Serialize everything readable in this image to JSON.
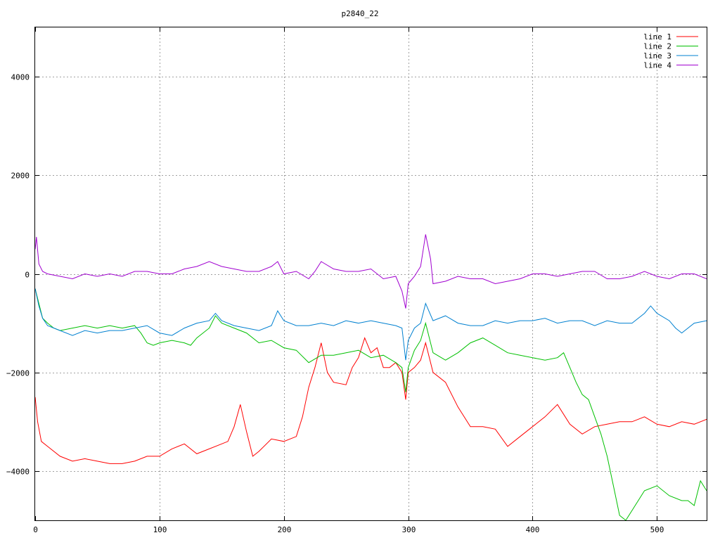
{
  "chart_data": {
    "type": "line",
    "title": "p2840_22",
    "xlabel": "",
    "ylabel": "",
    "xlim": [
      0,
      540
    ],
    "ylim": [
      -5000,
      5000
    ],
    "x_ticks": [
      0,
      100,
      200,
      300,
      400,
      500
    ],
    "y_ticks": [
      -4000,
      -2000,
      0,
      2000,
      4000
    ],
    "grid": true,
    "legend_position": "top-right",
    "series": [
      {
        "name": "line 1",
        "color": "#ff0000",
        "x": [
          0,
          2,
          5,
          10,
          20,
          30,
          40,
          50,
          60,
          70,
          80,
          90,
          100,
          110,
          120,
          130,
          140,
          150,
          155,
          160,
          165,
          170,
          175,
          180,
          190,
          200,
          210,
          215,
          220,
          225,
          230,
          235,
          240,
          250,
          255,
          260,
          265,
          270,
          275,
          280,
          285,
          290,
          295,
          298,
          300,
          305,
          310,
          314,
          320,
          330,
          340,
          350,
          360,
          370,
          380,
          390,
          400,
          410,
          420,
          430,
          440,
          450,
          460,
          470,
          480,
          490,
          500,
          510,
          520,
          530,
          540
        ],
        "y": [
          -2500,
          -3000,
          -3400,
          -3500,
          -3700,
          -3800,
          -3750,
          -3800,
          -3850,
          -3850,
          -3800,
          -3700,
          -3700,
          -3550,
          -3450,
          -3650,
          -3550,
          -3450,
          -3400,
          -3100,
          -2650,
          -3200,
          -3700,
          -3600,
          -3350,
          -3400,
          -3300,
          -2900,
          -2300,
          -1900,
          -1400,
          -2000,
          -2200,
          -2250,
          -1900,
          -1700,
          -1300,
          -1600,
          -1500,
          -1900,
          -1900,
          -1800,
          -2000,
          -2550,
          -2000,
          -1900,
          -1750,
          -1400,
          -2000,
          -2200,
          -2700,
          -3100,
          -3100,
          -3150,
          -3500,
          -3300,
          -3100,
          -2900,
          -2650,
          -3050,
          -3250,
          -3100,
          -3050,
          -3000,
          -3000,
          -2900,
          -3050,
          -3100,
          -3000,
          -3050,
          -2950
        ]
      },
      {
        "name": "line 2",
        "color": "#00c000",
        "x": [
          0,
          3,
          6,
          10,
          15,
          20,
          30,
          40,
          50,
          60,
          70,
          80,
          85,
          90,
          95,
          100,
          110,
          120,
          125,
          130,
          140,
          145,
          150,
          160,
          170,
          180,
          190,
          200,
          210,
          220,
          230,
          240,
          250,
          260,
          270,
          280,
          290,
          295,
          298,
          300,
          305,
          310,
          314,
          320,
          330,
          340,
          350,
          360,
          370,
          380,
          390,
          400,
          410,
          420,
          425,
          430,
          435,
          440,
          445,
          450,
          455,
          460,
          465,
          470,
          475,
          480,
          490,
          500,
          510,
          520,
          525,
          530,
          535,
          540
        ],
        "y": [
          -300,
          -600,
          -900,
          -1000,
          -1100,
          -1150,
          -1100,
          -1050,
          -1100,
          -1050,
          -1100,
          -1050,
          -1200,
          -1400,
          -1450,
          -1400,
          -1350,
          -1400,
          -1450,
          -1300,
          -1100,
          -850,
          -1000,
          -1100,
          -1200,
          -1400,
          -1350,
          -1500,
          -1550,
          -1800,
          -1650,
          -1650,
          -1600,
          -1550,
          -1700,
          -1650,
          -1800,
          -1900,
          -2400,
          -1900,
          -1550,
          -1350,
          -1000,
          -1600,
          -1750,
          -1600,
          -1400,
          -1300,
          -1450,
          -1600,
          -1650,
          -1700,
          -1750,
          -1700,
          -1600,
          -1900,
          -2200,
          -2450,
          -2550,
          -2900,
          -3250,
          -3700,
          -4300,
          -4900,
          -5000,
          -4800,
          -4400,
          -4300,
          -4500,
          -4600,
          -4600,
          -4700,
          -4200,
          -4400
        ]
      },
      {
        "name": "line 3",
        "color": "#0080d0",
        "x": [
          0,
          3,
          6,
          10,
          20,
          30,
          40,
          50,
          60,
          70,
          80,
          90,
          100,
          110,
          120,
          130,
          140,
          145,
          150,
          160,
          170,
          180,
          190,
          195,
          200,
          210,
          220,
          230,
          240,
          250,
          260,
          270,
          280,
          290,
          295,
          298,
          300,
          305,
          310,
          314,
          320,
          330,
          340,
          350,
          360,
          370,
          380,
          390,
          400,
          410,
          420,
          430,
          440,
          450,
          460,
          470,
          480,
          490,
          495,
          500,
          510,
          515,
          520,
          530,
          540
        ],
        "y": [
          -300,
          -650,
          -900,
          -1050,
          -1150,
          -1250,
          -1150,
          -1200,
          -1150,
          -1150,
          -1100,
          -1050,
          -1200,
          -1250,
          -1100,
          -1000,
          -950,
          -800,
          -950,
          -1050,
          -1100,
          -1150,
          -1050,
          -750,
          -950,
          -1050,
          -1050,
          -1000,
          -1050,
          -950,
          -1000,
          -950,
          -1000,
          -1050,
          -1100,
          -1750,
          -1350,
          -1100,
          -1000,
          -600,
          -950,
          -850,
          -1000,
          -1050,
          -1050,
          -950,
          -1000,
          -950,
          -950,
          -900,
          -1000,
          -950,
          -950,
          -1050,
          -950,
          -1000,
          -1000,
          -800,
          -650,
          -800,
          -950,
          -1100,
          -1200,
          -1000,
          -950
        ]
      },
      {
        "name": "line 4",
        "color": "#a000d0",
        "x": [
          0,
          1,
          3,
          6,
          10,
          20,
          30,
          40,
          50,
          60,
          70,
          80,
          90,
          100,
          110,
          120,
          130,
          140,
          150,
          160,
          170,
          180,
          190,
          195,
          200,
          210,
          220,
          225,
          230,
          240,
          250,
          260,
          270,
          280,
          290,
          295,
          298,
          300,
          305,
          310,
          314,
          318,
          320,
          330,
          340,
          350,
          360,
          370,
          380,
          390,
          400,
          410,
          420,
          430,
          440,
          450,
          460,
          470,
          480,
          490,
          500,
          510,
          520,
          530,
          540
        ],
        "y": [
          500,
          750,
          200,
          50,
          0,
          -50,
          -100,
          0,
          -50,
          0,
          -50,
          50,
          50,
          0,
          0,
          100,
          150,
          250,
          150,
          100,
          50,
          50,
          150,
          250,
          0,
          50,
          -100,
          50,
          250,
          100,
          50,
          50,
          100,
          -100,
          -50,
          -350,
          -700,
          -200,
          -50,
          150,
          800,
          300,
          -200,
          -150,
          -50,
          -100,
          -100,
          -200,
          -150,
          -100,
          0,
          0,
          -50,
          0,
          50,
          50,
          -100,
          -100,
          -50,
          50,
          -50,
          -100,
          0,
          0,
          -100
        ]
      }
    ]
  }
}
